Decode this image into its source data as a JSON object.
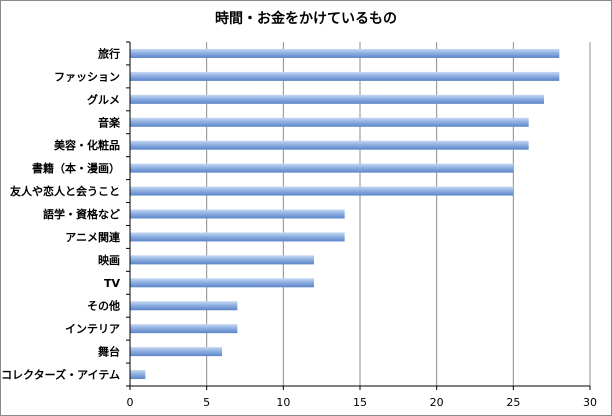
{
  "chart_data": {
    "type": "bar",
    "orientation": "horizontal",
    "title": "時間・お金をかけているもの",
    "xlabel": "",
    "ylabel": "",
    "categories": [
      "旅行",
      "ファッション",
      "グルメ",
      "音楽",
      "美容・化粧品",
      "書籍（本・漫画）",
      "友人や恋人と会うこと",
      "語学・資格など",
      "アニメ関連",
      "映画",
      "TV",
      "その他",
      "インテリア",
      "舞台",
      "コレクターズ・アイテム"
    ],
    "values": [
      28,
      28,
      27,
      26,
      26,
      25,
      25,
      14,
      14,
      12,
      12,
      7,
      7,
      6,
      1
    ],
    "xlim": [
      0,
      30
    ],
    "xticks": [
      0,
      5,
      10,
      15,
      20,
      25,
      30
    ],
    "grid": true,
    "legend": "none",
    "colors": {
      "bar_light": "#c6d8f2",
      "bar_mid": "#8fb0e2",
      "bar_dark": "#5b84c8",
      "grid": "#8c8c8c",
      "axis": "#000000"
    }
  }
}
